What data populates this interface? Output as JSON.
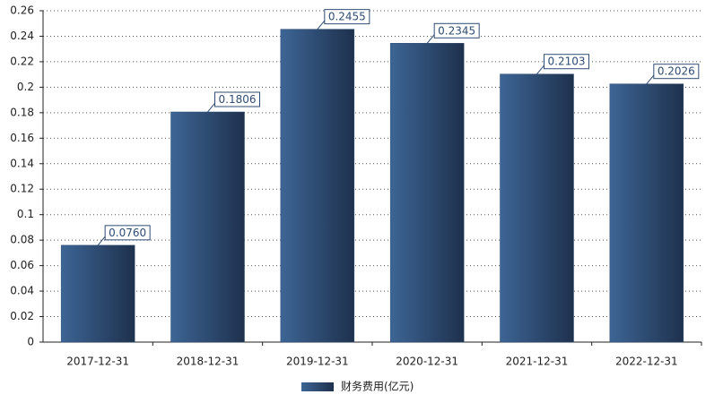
{
  "chart_data": {
    "type": "bar",
    "categories": [
      "2017-12-31",
      "2018-12-31",
      "2019-12-31",
      "2020-12-31",
      "2021-12-31",
      "2022-12-31"
    ],
    "series": [
      {
        "name": "财务费用(亿元)",
        "color": "#2e4c75",
        "values": [
          0.076,
          0.1806,
          0.2455,
          0.2345,
          0.2103,
          0.2026
        ],
        "value_labels": [
          "0.0760",
          "0.1806",
          "0.2455",
          "0.2345",
          "0.2103",
          "0.2026"
        ]
      }
    ],
    "ylim": [
      0,
      0.26
    ],
    "yticks": [
      0,
      0.02,
      0.04,
      0.06,
      0.08,
      0.1,
      0.12,
      0.14,
      0.16,
      0.18,
      0.2,
      0.22,
      0.24,
      0.26
    ],
    "grid": true,
    "legend": "bottom"
  }
}
